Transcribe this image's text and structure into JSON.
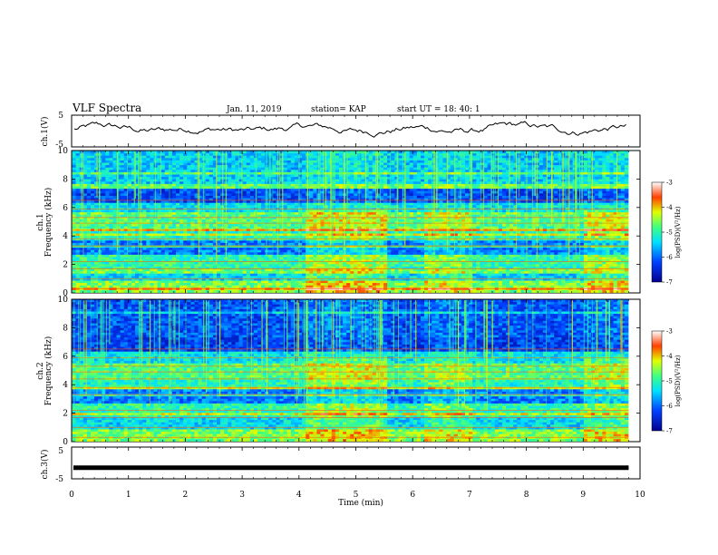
{
  "header": {
    "title": "VLF Spectra",
    "date": "Jan. 11, 2019",
    "station": "station= KAP",
    "start": "start  UT =  18: 40: 1"
  },
  "chart_data": [
    {
      "type": "line",
      "panel": "ch1-waveform",
      "ylabel": "ch.1(V)",
      "ylim": [
        -5,
        5
      ],
      "yticks": [
        "5",
        "-5"
      ],
      "xlim": [
        0,
        10
      ],
      "description_values": {
        "mean": 0.5,
        "amplitude": 2.5
      }
    },
    {
      "type": "heatmap",
      "panel": "ch1-spectrogram",
      "ylabel_top": "ch.1",
      "ylabel": "Frequency (kHz)",
      "ylim": [
        0,
        10
      ],
      "yticks": [
        "0",
        "2",
        "4",
        "6",
        "8",
        "10"
      ],
      "xlim": [
        0,
        10
      ],
      "data_end_min": 9.8,
      "colorbar": {
        "label": "log(PSD)(V²/Hz)",
        "ticks": [
          "-3",
          "-4",
          "-5",
          "-6",
          "-7"
        ],
        "range": [
          -7,
          -3
        ]
      }
    },
    {
      "type": "heatmap",
      "panel": "ch2-spectrogram",
      "ylabel_top": "ch.2",
      "ylabel": "Frequency (kHz)",
      "ylim": [
        0,
        10
      ],
      "yticks": [
        "0",
        "2",
        "4",
        "6",
        "8",
        "10"
      ],
      "xlim": [
        0,
        10
      ],
      "data_end_min": 9.8,
      "colorbar": {
        "label": "log(PSD)(V²/Hz)",
        "ticks": [
          "-3",
          "-4",
          "-5",
          "-6",
          "-7"
        ],
        "range": [
          -7,
          -3
        ]
      }
    },
    {
      "type": "line",
      "panel": "ch3-waveform",
      "ylabel": "ch.3(V)",
      "ylim": [
        -5,
        5
      ],
      "yticks": [
        "5",
        "-5"
      ],
      "xlim": [
        0,
        10
      ],
      "constant_value": -1.5,
      "data_end_min": 9.8
    }
  ],
  "xaxis": {
    "label": "Time (min)",
    "ticks": [
      "0",
      "1",
      "2",
      "3",
      "4",
      "5",
      "6",
      "7",
      "8",
      "9",
      "10"
    ]
  }
}
